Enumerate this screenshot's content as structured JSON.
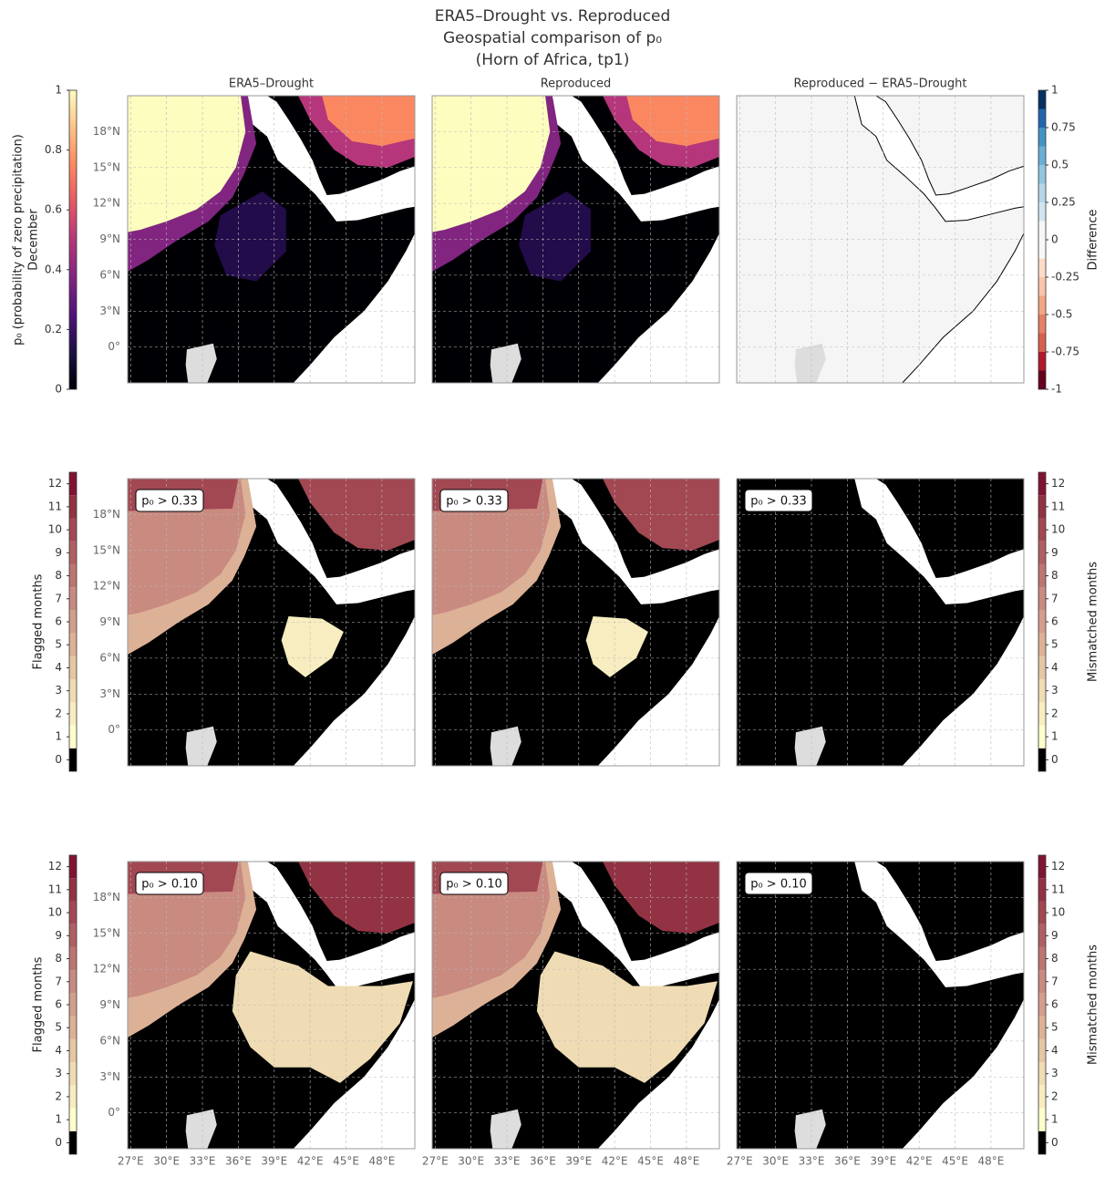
{
  "title": "ERA5–Drought vs. Reproduced",
  "subtitle": "Geospatial comparison of p₀",
  "subtitle2": "(Horn of Africa, tp1)",
  "column_titles": [
    "ERA5–Drought",
    "Reproduced",
    "Reproduced − ERA5–Drought"
  ],
  "map": {
    "xlim": [
      26.75,
      50.75
    ],
    "ylim": [
      -3,
      21
    ],
    "xticks": [
      {
        "value": 27,
        "label": "27°E"
      },
      {
        "value": 30,
        "label": "30°E"
      },
      {
        "value": 33,
        "label": "33°E"
      },
      {
        "value": 36,
        "label": "36°E"
      },
      {
        "value": 39,
        "label": "39°E"
      },
      {
        "value": 42,
        "label": "42°E"
      },
      {
        "value": 45,
        "label": "45°E"
      },
      {
        "value": 48,
        "label": "48°E"
      }
    ],
    "yticks": [
      {
        "value": 18,
        "label": "18°N"
      },
      {
        "value": 15,
        "label": "15°N"
      },
      {
        "value": 12,
        "label": "12°N"
      },
      {
        "value": 9,
        "label": "9°N"
      },
      {
        "value": 6,
        "label": "6°N"
      },
      {
        "value": 3,
        "label": "3°N"
      },
      {
        "value": 0,
        "label": "0°"
      }
    ],
    "grid": true
  },
  "rows": [
    {
      "left_colorbar": {
        "label": "p₀ (probability of zero precipitation)",
        "sublabel": "December",
        "lim": [
          0,
          1
        ],
        "ticks": [
          0,
          0.2,
          0.4,
          0.6,
          0.8,
          1
        ],
        "discrete": false,
        "colors": [
          "#000004",
          "#1c1044",
          "#4f127b",
          "#812581",
          "#b5367a",
          "#e55964",
          "#fb8761",
          "#fec287",
          "#fcfdbf"
        ]
      },
      "right_colorbar": {
        "label": "Difference",
        "lim": [
          -1,
          1
        ],
        "ticks": [
          -1,
          -0.75,
          -0.5,
          -0.25,
          0,
          0.25,
          0.5,
          0.75,
          1
        ],
        "discrete": true,
        "colors": [
          "#67001f",
          "#b2182b",
          "#d6604d",
          "#e48066",
          "#f4a582",
          "#f9c4a9",
          "#fddbc7",
          "#f7f7f7",
          "#f7f7f7",
          "#d1e5f0",
          "#b4d6e8",
          "#92c5de",
          "#6aaed6",
          "#4393c3",
          "#2166ac",
          "#053061"
        ]
      }
    },
    {
      "annotation": "p₀ > 0.33",
      "left_colorbar": {
        "label": "Flagged months",
        "lim": [
          -0.5,
          12.5
        ],
        "ticks": [
          0,
          1,
          2,
          3,
          4,
          5,
          6,
          7,
          8,
          9,
          10,
          11,
          12
        ],
        "discrete": true,
        "colors": [
          "#000000",
          "#ffffcc",
          "#f7edc0",
          "#efdcb4",
          "#e6c6a3",
          "#ddb196",
          "#d39e8b",
          "#c98a80",
          "#bd7572",
          "#b05f63",
          "#a24852",
          "#923243",
          "#7f1431"
        ]
      },
      "right_colorbar": {
        "label": "Mismatched months",
        "lim": [
          -0.5,
          12.5
        ],
        "ticks": [
          0,
          1,
          2,
          3,
          4,
          5,
          6,
          7,
          8,
          9,
          10,
          11,
          12
        ],
        "discrete": true,
        "colors": [
          "#000000",
          "#ffffcc",
          "#f7edc0",
          "#efdcb4",
          "#e6c6a3",
          "#ddb196",
          "#d39e8b",
          "#c98a80",
          "#bd7572",
          "#b05f63",
          "#a24852",
          "#923243",
          "#7f1431"
        ]
      }
    },
    {
      "annotation": "p₀ > 0.10",
      "left_colorbar": {
        "label": "Flagged months",
        "lim": [
          -0.5,
          12.5
        ],
        "ticks": [
          0,
          1,
          2,
          3,
          4,
          5,
          6,
          7,
          8,
          9,
          10,
          11,
          12
        ],
        "discrete": true,
        "colors": [
          "#000000",
          "#ffffcc",
          "#f7edc0",
          "#efdcb4",
          "#e6c6a3",
          "#ddb196",
          "#d39e8b",
          "#c98a80",
          "#bd7572",
          "#b05f63",
          "#a24852",
          "#923243",
          "#7f1431"
        ]
      },
      "right_colorbar": {
        "label": "Mismatched months",
        "lim": [
          -0.5,
          12.5
        ],
        "ticks": [
          0,
          1,
          2,
          3,
          4,
          5,
          6,
          7,
          8,
          9,
          10,
          11,
          12
        ],
        "discrete": true,
        "colors": [
          "#000000",
          "#ffffcc",
          "#f7edc0",
          "#efdcb4",
          "#e6c6a3",
          "#ddb196",
          "#d39e8b",
          "#c98a80",
          "#bd7572",
          "#b05f63",
          "#a24852",
          "#923243",
          "#7f1431"
        ]
      }
    }
  ]
}
